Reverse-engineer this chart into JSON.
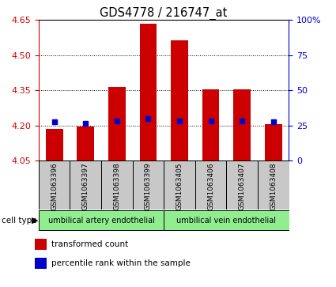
{
  "title": "GDS4778 / 216747_at",
  "samples": [
    "GSM1063396",
    "GSM1063397",
    "GSM1063398",
    "GSM1063399",
    "GSM1063405",
    "GSM1063406",
    "GSM1063407",
    "GSM1063408"
  ],
  "bar_values": [
    4.185,
    4.195,
    4.365,
    4.635,
    4.565,
    4.355,
    4.355,
    4.205
  ],
  "bar_base": 4.05,
  "percentile_values": [
    4.215,
    4.21,
    4.22,
    4.23,
    4.22,
    4.22,
    4.22,
    4.215
  ],
  "ylim": [
    4.05,
    4.65
  ],
  "yticks_left": [
    4.05,
    4.2,
    4.35,
    4.5,
    4.65
  ],
  "yticks_right_labels": [
    "0",
    "25",
    "50",
    "75",
    "100%"
  ],
  "yticks_right_vals": [
    4.05,
    4.2,
    4.35,
    4.5,
    4.65
  ],
  "bar_color": "#cc0000",
  "percentile_color": "#0000cc",
  "left_axis_color": "#cc0000",
  "right_axis_color": "#0000cc",
  "group1_label": "umbilical artery endothelial",
  "group2_label": "umbilical vein endothelial",
  "group_color": "#90ee90",
  "cell_type_label": "cell type",
  "legend_items": [
    {
      "label": "transformed count",
      "color": "#cc0000"
    },
    {
      "label": "percentile rank within the sample",
      "color": "#0000cc"
    }
  ],
  "xticklabel_bg": "#c8c8c8",
  "spine_color": "#000000",
  "bar_width": 0.55
}
